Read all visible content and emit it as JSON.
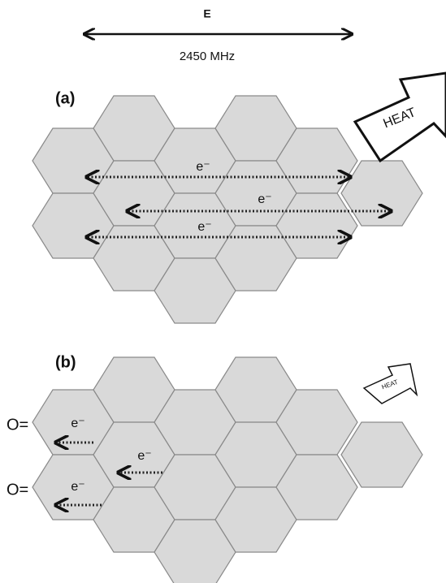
{
  "field": {
    "label": "E",
    "frequency": "2450 MHz"
  },
  "panels": [
    {
      "label": "(a)",
      "heat": "HEAT",
      "electrons": [
        "e⁻",
        "e⁻",
        "e⁻"
      ]
    },
    {
      "label": "(b)",
      "heat": "HEAT",
      "electrons": [
        "e⁻",
        "e⁻",
        "e⁻"
      ],
      "groups": [
        "O=",
        "O="
      ]
    }
  ]
}
